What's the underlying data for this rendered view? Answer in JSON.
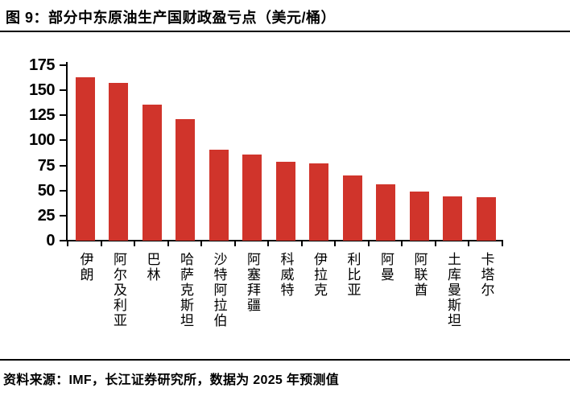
{
  "header": {
    "title": "图 9：部分中东原油生产国财政盈亏点（美元/桶）"
  },
  "footer": {
    "source": "资料来源：IMF，长江证券研究所，数据为 2025 年预测值"
  },
  "colors": {
    "bar": "#D0342B",
    "axis": "#000000",
    "text": "#000000",
    "background": "#FFFFFF"
  },
  "chart_data": {
    "type": "bar",
    "title": "部分中东原油生产国财政盈亏点（美元/桶）",
    "categories": [
      "伊朗",
      "阿尔及利亚",
      "巴林",
      "哈萨克斯坦",
      "沙特阿拉伯",
      "阿塞拜疆",
      "科威特",
      "伊拉克",
      "利比亚",
      "阿曼",
      "阿联酋",
      "土库曼斯坦",
      "卡塔尔"
    ],
    "values": [
      163,
      157,
      136,
      121,
      91,
      86,
      79,
      77,
      65,
      56,
      49,
      44,
      43
    ],
    "xlabel": "",
    "ylabel": "",
    "ylim": [
      0,
      175
    ],
    "yticks": [
      0,
      25,
      50,
      75,
      100,
      125,
      150,
      175
    ],
    "grid": false,
    "legend_position": "none",
    "bar_color": "#D0342B"
  }
}
